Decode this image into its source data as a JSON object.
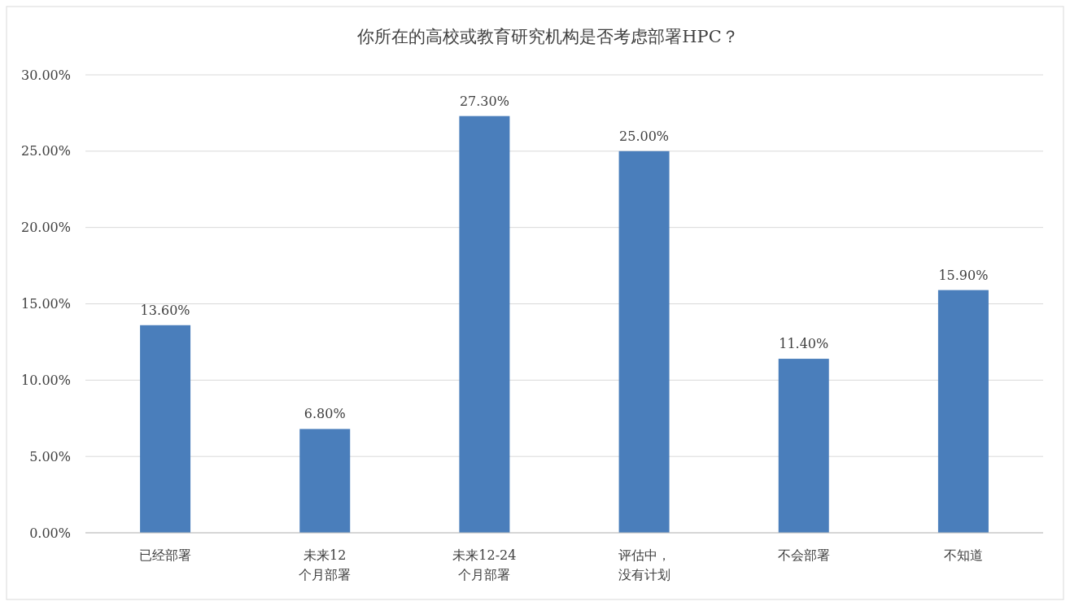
{
  "chart_data": {
    "type": "bar",
    "title": "你所在的高校或教育研究机构是否考虑部署HPC？",
    "categories": [
      "已经部署",
      "未来12个月部署",
      "未来12-24个月部署",
      "评估中，没有计划",
      "不会部署",
      "不知道"
    ],
    "values": [
      13.6,
      6.8,
      27.3,
      25.0,
      11.4,
      15.9
    ],
    "value_labels": [
      "13.60%",
      "6.80%",
      "27.30%",
      "25.00%",
      "11.40%",
      "15.90%"
    ],
    "color": "#4a7ebb",
    "ylim": [
      0,
      30
    ],
    "yticks": [
      {
        "value": 0,
        "label": "0.00%"
      },
      {
        "value": 5,
        "label": "5.00%"
      },
      {
        "value": 10,
        "label": "10.00%"
      },
      {
        "value": 15,
        "label": "15.00%"
      },
      {
        "value": 20,
        "label": "20.00%"
      },
      {
        "value": 25,
        "label": "25.00%"
      },
      {
        "value": 30,
        "label": "30.00%"
      }
    ],
    "grid": "y"
  }
}
